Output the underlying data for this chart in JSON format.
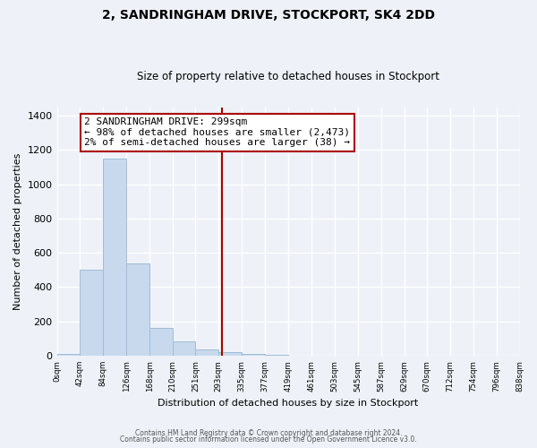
{
  "title": "2, SANDRINGHAM DRIVE, STOCKPORT, SK4 2DD",
  "subtitle": "Size of property relative to detached houses in Stockport",
  "xlabel": "Distribution of detached houses by size in Stockport",
  "ylabel": "Number of detached properties",
  "bar_edges": [
    0,
    42,
    84,
    126,
    168,
    210,
    251,
    293,
    335,
    377,
    419,
    461,
    503,
    545,
    587,
    629,
    670,
    712,
    754,
    796,
    838
  ],
  "bar_heights": [
    10,
    500,
    1150,
    540,
    160,
    85,
    35,
    20,
    10,
    5,
    2,
    0,
    0,
    0,
    0,
    0,
    0,
    0,
    0,
    0
  ],
  "bar_color": "#c8d9ed",
  "bar_edgecolor": "#a0bcd8",
  "vline_x": 299,
  "vline_color": "#aa0000",
  "ylim": [
    0,
    1450
  ],
  "yticks": [
    0,
    200,
    400,
    600,
    800,
    1000,
    1200,
    1400
  ],
  "xtick_labels": [
    "0sqm",
    "42sqm",
    "84sqm",
    "126sqm",
    "168sqm",
    "210sqm",
    "251sqm",
    "293sqm",
    "335sqm",
    "377sqm",
    "419sqm",
    "461sqm",
    "503sqm",
    "545sqm",
    "587sqm",
    "629sqm",
    "670sqm",
    "712sqm",
    "754sqm",
    "796sqm",
    "838sqm"
  ],
  "annotation_title": "2 SANDRINGHAM DRIVE: 299sqm",
  "annotation_line1": "← 98% of detached houses are smaller (2,473)",
  "annotation_line2": "2% of semi-detached houses are larger (38) →",
  "annotation_box_color": "#ffffff",
  "annotation_box_edgecolor": "#aa0000",
  "footer1": "Contains HM Land Registry data © Crown copyright and database right 2024.",
  "footer2": "Contains public sector information licensed under the Open Government Licence v3.0.",
  "background_color": "#eef2f8",
  "plot_bg_color": "#eef2f8",
  "grid_color": "#ffffff"
}
